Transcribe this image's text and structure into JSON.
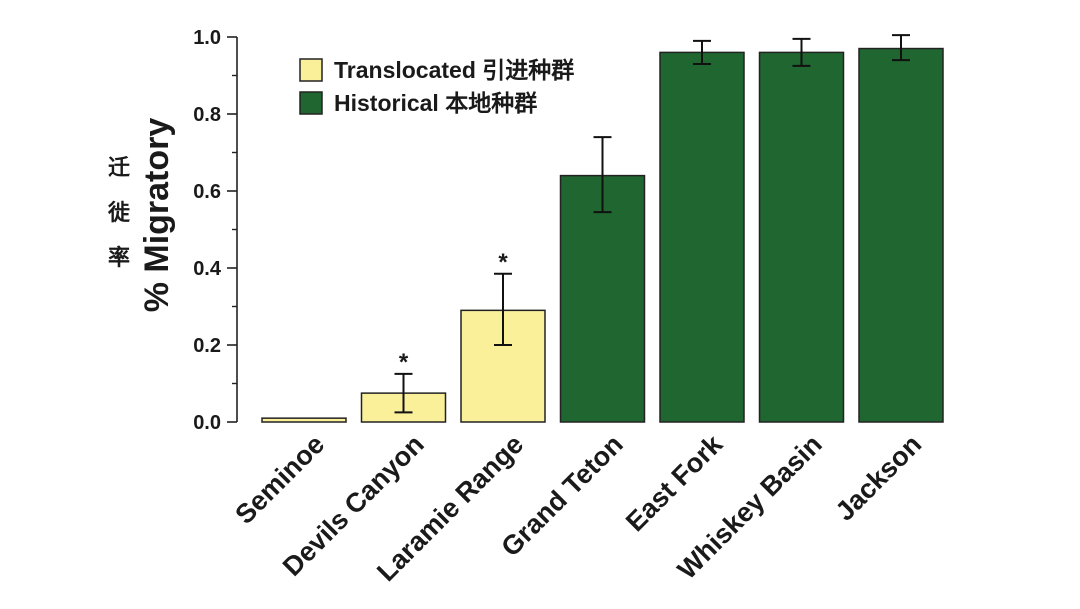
{
  "chart_data": {
    "type": "bar",
    "ylabel": "% Migratory",
    "ylabel_cn": [
      "迁",
      "徙",
      "率"
    ],
    "ylim": [
      0,
      1.0
    ],
    "yticks": [
      "0.0",
      "0.2",
      "0.4",
      "0.6",
      "0.8",
      "1.0"
    ],
    "grid": false,
    "legend_position": "top-left",
    "legend": [
      {
        "label": "Translocated 引进种群",
        "color": "#fbf09a",
        "group": "translocated"
      },
      {
        "label": "Historical 本地种群",
        "color": "#1f6630",
        "group": "historical"
      }
    ],
    "categories": [
      "Seminoe",
      "Devils Canyon",
      "Laramie Range",
      "Grand Teton",
      "East Fork",
      "Whiskey Basin",
      "Jackson"
    ],
    "values": [
      0.01,
      0.075,
      0.29,
      0.64,
      0.96,
      0.96,
      0.97
    ],
    "error_low": [
      null,
      0.025,
      0.2,
      0.545,
      0.93,
      0.925,
      0.94
    ],
    "error_high": [
      null,
      0.125,
      0.385,
      0.74,
      0.99,
      0.995,
      1.005
    ],
    "groups": [
      "translocated",
      "translocated",
      "translocated",
      "historical",
      "historical",
      "historical",
      "historical"
    ],
    "significance": [
      "",
      "*",
      "*",
      "",
      "",
      "",
      ""
    ]
  }
}
